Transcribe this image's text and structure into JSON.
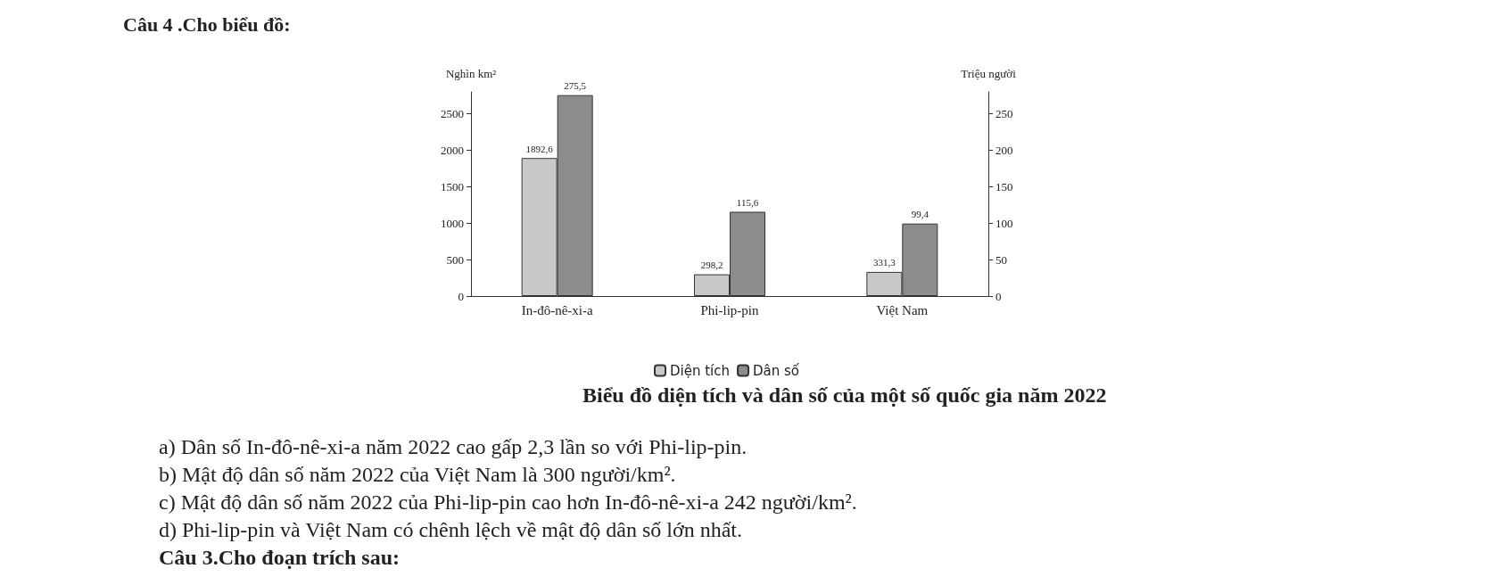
{
  "chart_data": {
    "type": "bar",
    "title": "Biểu đồ diện tích và dân số của một số quốc gia năm 2022",
    "ylabel": "Nghìn km²",
    "y2label": "Triệu người",
    "categories": [
      "In-đô-nê-xi-a",
      "Phi-lip-pin",
      "Việt Nam"
    ],
    "series": [
      {
        "name": "Diện tích",
        "color": "#c9c9c9",
        "values": [
          1892.6,
          298.2,
          331.3
        ],
        "value_labels": [
          "1892,6",
          "298,2",
          "331,3"
        ]
      },
      {
        "name": "Dân số",
        "color": "#8c8c8c",
        "axis": "y2",
        "values": [
          275.5,
          115.6,
          99.4
        ],
        "value_labels": [
          "275,5",
          "115,6",
          "99,4"
        ]
      }
    ],
    "ylim": [
      0,
      2800
    ],
    "yticks": [
      0,
      500,
      1000,
      1500,
      2000,
      2500
    ],
    "y2lim": [
      0,
      280
    ],
    "y2ticks": [
      0,
      50,
      100,
      150,
      200,
      250
    ],
    "grid": false,
    "legend": "bottom",
    "annotations": [
      "Câu 4 .Cho biểu đồ:",
      "a) Dân số In-đô-nê-xi-a năm 2022 cao gấp 2,3 lần so với Phi-lip-pin.",
      "b) Mật độ dân số năm 2022 của Việt Nam là 300 người/km².",
      "c) Mật độ dân số năm 2022 của Phi-lip-pin cao hơn In-đô-nê-xi-a 242 người/km².",
      "d) Phi-lip-pin và Việt Nam có chênh lệch về mật độ dân số lớn nhất.",
      "Câu 3.Cho đoạn trích sau:"
    ]
  }
}
